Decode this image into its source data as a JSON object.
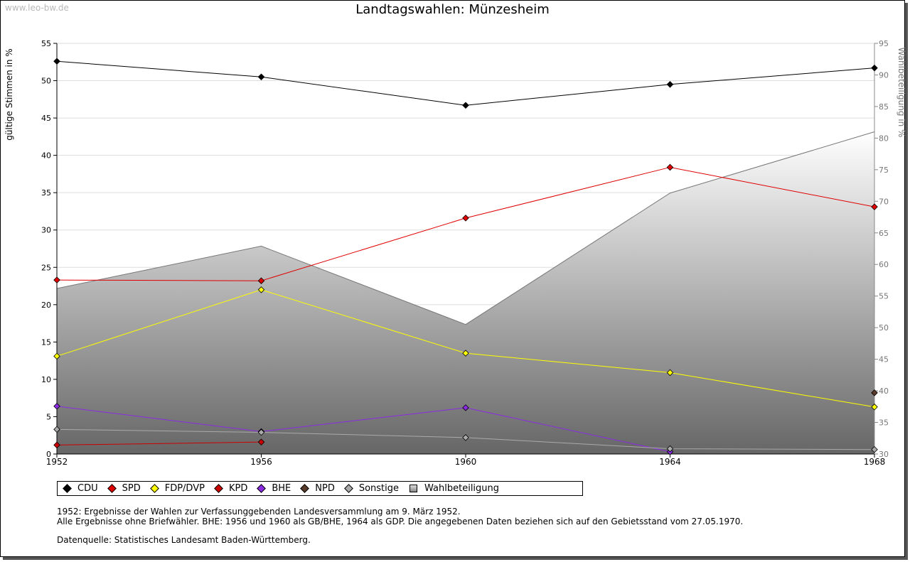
{
  "watermark": "www.leo-bw.de",
  "chart_data": {
    "type": "line",
    "title": "Landtagswahlen: Münzesheim",
    "ylabel": "gültige Stimmen in %",
    "y2label": "Wahlbeteiligung in %",
    "xlabel": "",
    "x": [
      "1952",
      "1956",
      "1960",
      "1964",
      "1968"
    ],
    "ylim": [
      0,
      55
    ],
    "yticks": [
      0,
      5,
      10,
      15,
      20,
      25,
      30,
      35,
      40,
      45,
      50,
      55
    ],
    "y2lim": [
      30,
      95
    ],
    "y2ticks": [
      30,
      35,
      40,
      45,
      50,
      55,
      60,
      65,
      70,
      75,
      80,
      85,
      90,
      95
    ],
    "grid": true,
    "series": [
      {
        "name": "CDU",
        "color": "#000000",
        "values": [
          52.6,
          50.5,
          46.7,
          49.5,
          51.7
        ]
      },
      {
        "name": "SPD",
        "color": "#e00000",
        "values": [
          23.3,
          23.2,
          31.6,
          38.4,
          33.1
        ]
      },
      {
        "name": "FDP/DVP",
        "color": "#ffff00",
        "values": [
          13.1,
          22.0,
          13.5,
          10.9,
          6.3
        ]
      },
      {
        "name": "KPD",
        "color": "#cc0000",
        "values": [
          1.2,
          1.6,
          null,
          null,
          null
        ]
      },
      {
        "name": "BHE",
        "color": "#8a2be2",
        "values": [
          6.4,
          3.0,
          6.2,
          0.3,
          null
        ]
      },
      {
        "name": "NPD",
        "color": "#5a3a2a",
        "values": [
          null,
          null,
          null,
          null,
          8.2
        ]
      },
      {
        "name": "Sonstige",
        "color": "#aaaaaa",
        "values": [
          3.3,
          2.9,
          2.2,
          0.7,
          0.6
        ]
      }
    ],
    "turnout": {
      "name": "Wahlbeteiligung",
      "axis": "right",
      "values": [
        56.2,
        62.9,
        50.5,
        71.3,
        81.0
      ]
    }
  },
  "legend": [
    {
      "label": "CDU",
      "color": "#000000",
      "shape": "diamond"
    },
    {
      "label": "SPD",
      "color": "#e00000",
      "shape": "diamond"
    },
    {
      "label": "FDP/DVP",
      "color": "#ffff00",
      "shape": "diamond"
    },
    {
      "label": "KPD",
      "color": "#cc0000",
      "shape": "diamond"
    },
    {
      "label": "BHE",
      "color": "#8a2be2",
      "shape": "diamond"
    },
    {
      "label": "NPD",
      "color": "#5a3a2a",
      "shape": "diamond"
    },
    {
      "label": "Sonstige",
      "color": "#aaaaaa",
      "shape": "diamond"
    },
    {
      "label": "Wahlbeteiligung",
      "color": "#aaaaaa",
      "shape": "square"
    }
  ],
  "notes": [
    "1952: Ergebnisse der Wahlen zur Verfassunggebenden Landesversammlung am 9. März 1952.",
    "Alle Ergebnisse ohne Briefwähler. BHE: 1956 und 1960 als GB/BHE, 1964 als GDP. Die angegebenen Daten beziehen sich auf den Gebietsstand vom 27.05.1970."
  ],
  "source": "Datenquelle: Statistisches Landesamt Baden-Württemberg."
}
